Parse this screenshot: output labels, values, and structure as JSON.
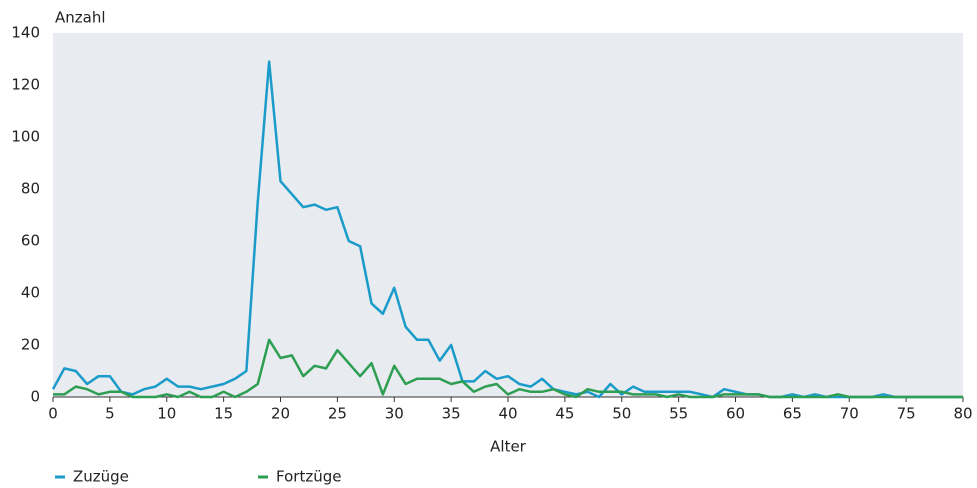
{
  "chart_data": {
    "type": "line",
    "y_label": "Anzahl",
    "x_label": "Alter",
    "x": [
      0,
      1,
      2,
      3,
      4,
      5,
      6,
      7,
      8,
      9,
      10,
      11,
      12,
      13,
      14,
      15,
      16,
      17,
      18,
      19,
      20,
      21,
      22,
      23,
      24,
      25,
      26,
      27,
      28,
      29,
      30,
      31,
      32,
      33,
      34,
      35,
      36,
      37,
      38,
      39,
      40,
      41,
      42,
      43,
      44,
      45,
      46,
      47,
      48,
      49,
      50,
      51,
      52,
      53,
      54,
      55,
      56,
      57,
      58,
      59,
      60,
      61,
      62,
      63,
      64,
      65,
      66,
      67,
      68,
      69,
      70,
      71,
      72,
      73,
      74,
      75,
      76,
      77,
      78,
      79,
      80
    ],
    "series": [
      {
        "name": "Zuzüge",
        "color": "#1a9bc9",
        "values": [
          3,
          11,
          10,
          5,
          8,
          8,
          2,
          1,
          3,
          4,
          7,
          4,
          4,
          3,
          4,
          5,
          7,
          10,
          75,
          129,
          83,
          78,
          73,
          74,
          72,
          73,
          60,
          58,
          36,
          32,
          42,
          27,
          22,
          22,
          14,
          20,
          6,
          6,
          10,
          7,
          8,
          5,
          4,
          7,
          3,
          2,
          1,
          2,
          0,
          5,
          1,
          4,
          2,
          2,
          2,
          2,
          2,
          1,
          0,
          3,
          2,
          1,
          1,
          0,
          0,
          1,
          0,
          1,
          0,
          0,
          0,
          0,
          0,
          1,
          0,
          0,
          0,
          0,
          0,
          0,
          0
        ]
      },
      {
        "name": "Fortzüge",
        "color": "#2e9e52",
        "values": [
          1,
          1,
          4,
          3,
          1,
          2,
          2,
          0,
          0,
          0,
          1,
          0,
          2,
          0,
          0,
          2,
          0,
          2,
          5,
          22,
          15,
          16,
          8,
          12,
          11,
          18,
          13,
          8,
          13,
          1,
          12,
          5,
          7,
          7,
          7,
          5,
          6,
          2,
          4,
          5,
          1,
          3,
          2,
          2,
          3,
          1,
          0,
          3,
          2,
          2,
          2,
          1,
          1,
          1,
          0,
          1,
          0,
          0,
          0,
          1,
          1,
          1,
          1,
          0,
          0,
          0,
          0,
          0,
          0,
          1,
          0,
          0,
          0,
          0,
          0,
          0,
          0,
          0,
          0,
          0,
          0
        ]
      }
    ],
    "xlim": [
      0,
      80
    ],
    "xticks": [
      0,
      5,
      10,
      15,
      20,
      25,
      30,
      35,
      40,
      45,
      50,
      55,
      60,
      65,
      70,
      75,
      80
    ],
    "ylim": [
      0,
      140
    ],
    "yticks": [
      0,
      20,
      40,
      60,
      80,
      100,
      120,
      140
    ],
    "grid": false,
    "background": "#e8ebef",
    "legend": "bottom"
  }
}
